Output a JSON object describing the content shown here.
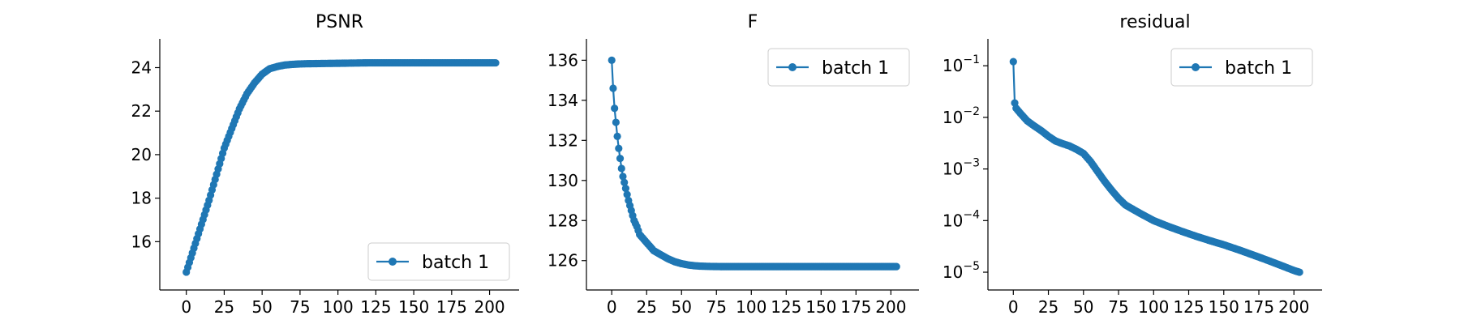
{
  "chart_data": [
    {
      "type": "line",
      "title": "PSNR",
      "xlabel": "",
      "ylabel": "",
      "xlim": [
        -10,
        212
      ],
      "ylim": [
        14.3,
        24.8
      ],
      "xticks": [
        0,
        25,
        50,
        75,
        100,
        125,
        150,
        175,
        200
      ],
      "xtick_labels": [
        "0",
        "25",
        "50",
        "75",
        "100",
        "125",
        "150",
        "175",
        "200"
      ],
      "yticks": [
        16,
        18,
        20,
        22,
        24
      ],
      "ytick_labels": [
        "16",
        "18",
        "20",
        "22",
        "24"
      ],
      "legend": {
        "position": "bottom-right",
        "entries": [
          "batch 1"
        ]
      },
      "series": [
        {
          "name": "batch 1",
          "color": "#1f77b4",
          "marker": "circle",
          "x": [
            0,
            5,
            10,
            15,
            20,
            25,
            30,
            35,
            40,
            45,
            50,
            55,
            60,
            65,
            70,
            75,
            80,
            90,
            100,
            110,
            120,
            140,
            160,
            180,
            200,
            204
          ],
          "y": [
            14.6,
            15.7,
            16.8,
            17.9,
            19.1,
            20.3,
            21.2,
            22.1,
            22.8,
            23.3,
            23.7,
            23.95,
            24.05,
            24.12,
            24.15,
            24.17,
            24.18,
            24.19,
            24.2,
            24.21,
            24.22,
            24.22,
            24.22,
            24.22,
            24.22,
            24.22
          ]
        }
      ],
      "grid": false
    },
    {
      "type": "line",
      "title": "F",
      "xlabel": "",
      "ylabel": "",
      "xlim": [
        -10,
        212
      ],
      "ylim": [
        125.1,
        136.5
      ],
      "xticks": [
        0,
        25,
        50,
        75,
        100,
        125,
        150,
        175,
        200
      ],
      "xtick_labels": [
        "0",
        "25",
        "50",
        "75",
        "100",
        "125",
        "150",
        "175",
        "200"
      ],
      "yticks": [
        126,
        128,
        130,
        132,
        134,
        136
      ],
      "ytick_labels": [
        "126",
        "128",
        "130",
        "132",
        "134",
        "136"
      ],
      "legend": {
        "position": "top-right",
        "entries": [
          "batch 1"
        ]
      },
      "series": [
        {
          "name": "batch 1",
          "color": "#1f77b4",
          "marker": "circle",
          "x": [
            0,
            1,
            2,
            3,
            4,
            5,
            6,
            7,
            8,
            9,
            10,
            12,
            14,
            16,
            18,
            20,
            25,
            30,
            35,
            40,
            45,
            50,
            55,
            60,
            65,
            70,
            80,
            100,
            150,
            200,
            204
          ],
          "y": [
            136.0,
            134.6,
            133.6,
            132.9,
            132.2,
            131.6,
            131.1,
            130.6,
            130.2,
            129.9,
            129.6,
            129.0,
            128.5,
            128.0,
            127.7,
            127.3,
            126.9,
            126.5,
            126.3,
            126.1,
            125.95,
            125.85,
            125.78,
            125.74,
            125.72,
            125.71,
            125.7,
            125.7,
            125.7,
            125.7,
            125.7
          ]
        }
      ],
      "grid": false
    },
    {
      "type": "line",
      "title": "residual",
      "xlabel": "",
      "ylabel": "",
      "yscale": "log",
      "xlim": [
        -10,
        212
      ],
      "ylim": [
        7.5e-06,
        0.2
      ],
      "xticks": [
        0,
        25,
        50,
        75,
        100,
        125,
        150,
        175,
        200
      ],
      "xtick_labels": [
        "0",
        "25",
        "50",
        "75",
        "100",
        "125",
        "150",
        "175",
        "200"
      ],
      "yticks": [
        1e-05,
        0.0001,
        0.001,
        0.01,
        0.1
      ],
      "ytick_labels": [
        {
          "base": "10",
          "exp": "−5"
        },
        {
          "base": "10",
          "exp": "−4"
        },
        {
          "base": "10",
          "exp": "−3"
        },
        {
          "base": "10",
          "exp": "−2"
        },
        {
          "base": "10",
          "exp": "−1"
        }
      ],
      "legend": {
        "position": "top-right",
        "entries": [
          "batch 1"
        ]
      },
      "series": [
        {
          "name": "batch 1",
          "color": "#1f77b4",
          "marker": "circle",
          "x": [
            0,
            1,
            2,
            5,
            10,
            15,
            20,
            25,
            30,
            35,
            40,
            45,
            50,
            55,
            60,
            65,
            70,
            75,
            80,
            90,
            100,
            110,
            120,
            130,
            140,
            150,
            160,
            170,
            180,
            190,
            200,
            204
          ],
          "y": [
            0.12,
            0.019,
            0.015,
            0.012,
            0.0085,
            0.0068,
            0.0055,
            0.0043,
            0.0035,
            0.0031,
            0.0028,
            0.0024,
            0.002,
            0.0014,
            0.0009,
            0.00058,
            0.00039,
            0.00027,
            0.0002,
            0.00014,
            0.0001,
            7.8e-05,
            6.2e-05,
            5e-05,
            4.1e-05,
            3.4e-05,
            2.75e-05,
            2.2e-05,
            1.75e-05,
            1.38e-05,
            1.08e-05,
            1e-05
          ]
        }
      ],
      "grid": false
    }
  ]
}
